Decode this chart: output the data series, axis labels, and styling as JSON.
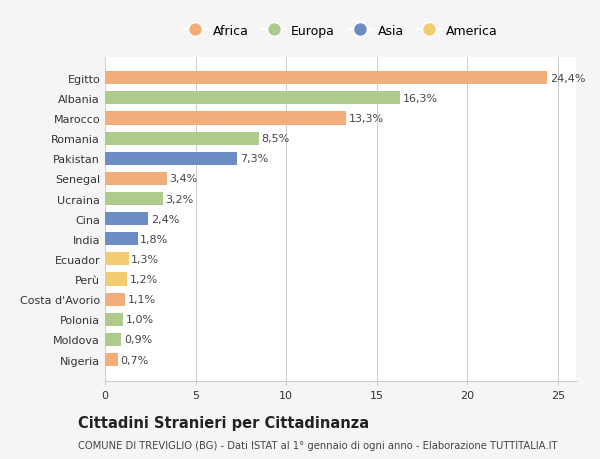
{
  "countries": [
    "Egitto",
    "Albania",
    "Marocco",
    "Romania",
    "Pakistan",
    "Senegal",
    "Ucraina",
    "Cina",
    "India",
    "Ecuador",
    "Perù",
    "Costa d'Avorio",
    "Polonia",
    "Moldova",
    "Nigeria"
  ],
  "values": [
    24.4,
    16.3,
    13.3,
    8.5,
    7.3,
    3.4,
    3.2,
    2.4,
    1.8,
    1.3,
    1.2,
    1.1,
    1.0,
    0.9,
    0.7
  ],
  "labels": [
    "24,4%",
    "16,3%",
    "13,3%",
    "8,5%",
    "7,3%",
    "3,4%",
    "3,2%",
    "2,4%",
    "1,8%",
    "1,3%",
    "1,2%",
    "1,1%",
    "1,0%",
    "0,9%",
    "0,7%"
  ],
  "continents": [
    "Africa",
    "Europa",
    "Africa",
    "Europa",
    "Asia",
    "Africa",
    "Europa",
    "Asia",
    "Asia",
    "America",
    "America",
    "Africa",
    "Europa",
    "Europa",
    "Africa"
  ],
  "colors": {
    "Africa": "#F2AE7A",
    "Europa": "#AECA8C",
    "Asia": "#6B8DC4",
    "America": "#F2CC72"
  },
  "legend_order": [
    "Africa",
    "Europa",
    "Asia",
    "America"
  ],
  "title": "Cittadini Stranieri per Cittadinanza",
  "subtitle": "COMUNE DI TREVIGLIO (BG) - Dati ISTAT al 1° gennaio di ogni anno - Elaborazione TUTTITALIA.IT",
  "xlim": [
    0,
    26
  ],
  "xticks": [
    0,
    5,
    10,
    15,
    20,
    25
  ],
  "background_color": "#f5f5f5",
  "plot_bg_color": "#ffffff",
  "grid_color": "#cccccc",
  "label_fontsize": 8,
  "tick_fontsize": 8,
  "title_fontsize": 10.5,
  "subtitle_fontsize": 7.2
}
